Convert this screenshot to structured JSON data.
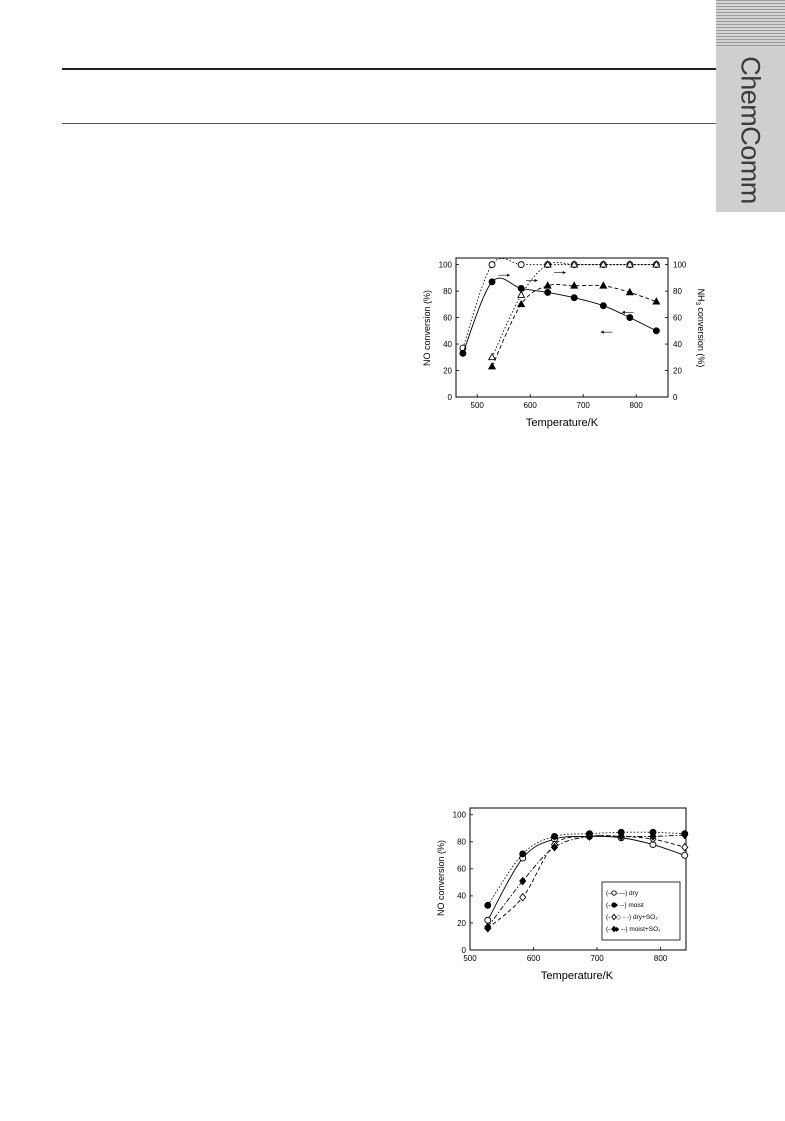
{
  "journal": {
    "side_label": "ChemComm"
  },
  "chart_data": [
    {
      "type": "line",
      "xlabel": "Temperature/K",
      "ylabel": "NO conversion (%)",
      "ylabel2": "NH3 conversion (%)",
      "xlim": [
        460,
        860
      ],
      "ylim": [
        0,
        105
      ],
      "ylim2": [
        0,
        105
      ],
      "xticks": [
        "500",
        "600",
        "700",
        "800"
      ],
      "yticks": [
        "0",
        "20",
        "40",
        "60",
        "80",
        "100"
      ],
      "yticks2": [
        "0",
        "20",
        "40",
        "60",
        "80",
        "100"
      ],
      "grid": false,
      "series": [
        {
          "marker": "open-circle",
          "style": "dotted",
          "axis": "right",
          "x": [
            473,
            528,
            583,
            633,
            683,
            738,
            788,
            838
          ],
          "y": [
            37,
            100,
            100,
            100,
            100,
            100,
            100,
            100
          ]
        },
        {
          "marker": "filled-circle",
          "style": "solid",
          "axis": "left",
          "x": [
            473,
            528,
            583,
            633,
            683,
            738,
            788,
            838
          ],
          "y": [
            33,
            87,
            82,
            79,
            75,
            69,
            60,
            50
          ]
        },
        {
          "marker": "open-triangle",
          "style": "dotted",
          "axis": "right",
          "x": [
            528,
            583,
            633,
            683,
            738,
            788,
            838
          ],
          "y": [
            30,
            77,
            100,
            100,
            100,
            100,
            100
          ]
        },
        {
          "marker": "filled-triangle",
          "style": "dash",
          "axis": "left",
          "x": [
            528,
            583,
            633,
            683,
            738,
            788,
            838
          ],
          "y": [
            23,
            70,
            84,
            84,
            84,
            79,
            72
          ]
        }
      ]
    },
    {
      "type": "line",
      "xlabel": "Temperature/K",
      "ylabel": "NO conversion (%)",
      "xlim": [
        500,
        840
      ],
      "ylim": [
        0,
        105
      ],
      "xticks": [
        "500",
        "600",
        "700",
        "800"
      ],
      "yticks": [
        "0",
        "20",
        "40",
        "60",
        "80",
        "100"
      ],
      "grid": false,
      "legend": "inside-lower-right",
      "series": [
        {
          "name": "dry",
          "legend_label": "(—○—) dry",
          "marker": "open-circle",
          "style": "solid",
          "x": [
            528,
            583,
            633,
            688,
            738,
            788,
            838
          ],
          "y": [
            22,
            68,
            82,
            84,
            83,
            78,
            70
          ]
        },
        {
          "name": "moist",
          "legend_label": "(-- ● --) moist",
          "marker": "filled-circle",
          "style": "dotted",
          "x": [
            528,
            583,
            633,
            688,
            738,
            788,
            838
          ],
          "y": [
            33,
            71,
            84,
            86,
            87,
            87,
            86
          ]
        },
        {
          "name": "dry+SO2",
          "legend_label": "(- - ◇ - -) dry+SO₂",
          "marker": "open-diamond",
          "style": "dash",
          "x": [
            528,
            583,
            633,
            688,
            738,
            788,
            838
          ],
          "y": [
            16,
            39,
            78,
            84,
            84,
            82,
            76
          ]
        },
        {
          "name": "moist+SO2",
          "legend_label": "(-- ◆ --) moist+SO₂",
          "marker": "filled-diamond",
          "style": "dashdot",
          "x": [
            528,
            583,
            633,
            688,
            738,
            788,
            838
          ],
          "y": [
            17,
            51,
            76,
            84,
            84,
            84,
            85
          ]
        }
      ]
    }
  ]
}
